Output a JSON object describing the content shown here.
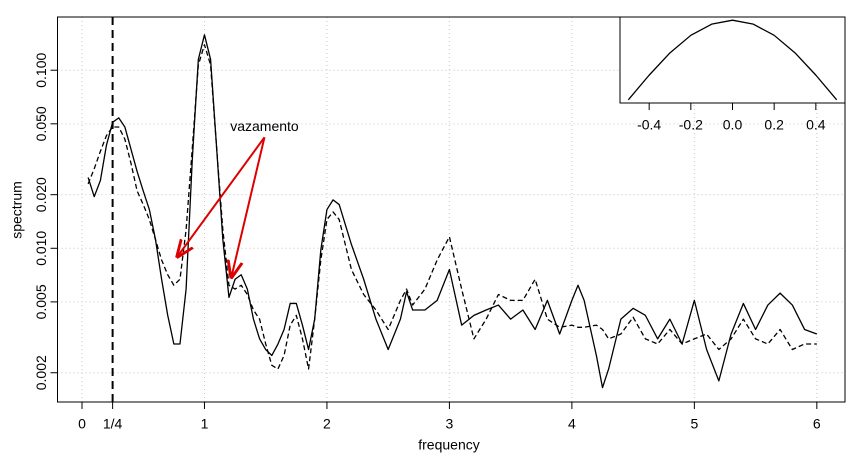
{
  "chart_data": [
    {
      "type": "line",
      "xlabel": "frequency",
      "ylabel": "spectrum",
      "log_y": true,
      "grid": true,
      "xlim": [
        -0.2,
        6.23
      ],
      "ylim": [
        0.00137,
        0.199
      ],
      "xticks": [
        0,
        1,
        2,
        3,
        4,
        5,
        6
      ],
      "yticks": [
        0.002,
        0.005,
        {
          "value": 0.01,
          "label": "0.010"
        },
        {
          "value": 0.02,
          "label": "0.020"
        },
        {
          "value": 0.05,
          "label": "0.050"
        },
        {
          "value": 0.1,
          "label": "0.100"
        }
      ],
      "vline": {
        "value": 0.25,
        "label": "1/4",
        "style": "dashed"
      },
      "x": [
        0.05,
        0.1,
        0.15,
        0.2,
        0.25,
        0.3,
        0.35,
        0.4,
        0.45,
        0.5,
        0.55,
        0.6,
        0.65,
        0.7,
        0.75,
        0.8,
        0.85,
        0.9,
        0.95,
        1.0,
        1.05,
        1.1,
        1.15,
        1.2,
        1.25,
        1.3,
        1.35,
        1.4,
        1.45,
        1.5,
        1.55,
        1.6,
        1.65,
        1.7,
        1.75,
        1.8,
        1.85,
        1.9,
        1.95,
        2.0,
        2.05,
        2.1,
        2.2,
        2.3,
        2.4,
        2.5,
        2.6,
        2.65,
        2.7,
        2.8,
        2.9,
        3.0,
        3.1,
        3.2,
        3.3,
        3.4,
        3.5,
        3.6,
        3.7,
        3.8,
        3.9,
        4.0,
        4.05,
        4.1,
        4.2,
        4.25,
        4.3,
        4.4,
        4.5,
        4.6,
        4.7,
        4.8,
        4.9,
        5.0,
        5.1,
        5.2,
        5.3,
        5.4,
        5.5,
        5.6,
        5.7,
        5.8,
        5.9,
        6.0
      ],
      "series": [
        {
          "color": "#000000",
          "dash": "solid",
          "values": [
            0.025,
            0.0195,
            0.024,
            0.038,
            0.051,
            0.054,
            0.048,
            0.036,
            0.027,
            0.021,
            0.0165,
            0.0112,
            0.0067,
            0.0042,
            0.0029,
            0.0029,
            0.0059,
            0.031,
            0.115,
            0.158,
            0.115,
            0.036,
            0.0112,
            0.0053,
            0.0067,
            0.0071,
            0.0059,
            0.004,
            0.0031,
            0.0027,
            0.0025,
            0.0029,
            0.0035,
            0.0049,
            0.0049,
            0.0037,
            0.0027,
            0.004,
            0.0098,
            0.0165,
            0.0187,
            0.0176,
            0.0105,
            0.0067,
            0.004,
            0.0027,
            0.004,
            0.0057,
            0.0045,
            0.0045,
            0.0051,
            0.0076,
            0.0037,
            0.0042,
            0.0045,
            0.0048,
            0.004,
            0.0045,
            0.0035,
            0.0051,
            0.0033,
            0.0051,
            0.0062,
            0.0051,
            0.0025,
            0.00165,
            0.0021,
            0.004,
            0.0046,
            0.0042,
            0.0031,
            0.004,
            0.0029,
            0.0051,
            0.0027,
            0.0018,
            0.0033,
            0.0049,
            0.0035,
            0.0048,
            0.0056,
            0.0048,
            0.0035,
            0.0033
          ]
        },
        {
          "color": "#000000",
          "dash": "dashed",
          "values": [
            0.023,
            0.028,
            0.035,
            0.043,
            0.048,
            0.048,
            0.041,
            0.03,
            0.021,
            0.0176,
            0.0145,
            0.0112,
            0.0086,
            0.0071,
            0.0062,
            0.0067,
            0.0127,
            0.036,
            0.107,
            0.139,
            0.107,
            0.036,
            0.0127,
            0.0062,
            0.0059,
            0.0062,
            0.0055,
            0.0045,
            0.004,
            0.0029,
            0.0022,
            0.0021,
            0.0025,
            0.0037,
            0.0042,
            0.0031,
            0.0021,
            0.004,
            0.0086,
            0.0145,
            0.016,
            0.0145,
            0.0076,
            0.0055,
            0.0045,
            0.0035,
            0.0051,
            0.0059,
            0.0048,
            0.0059,
            0.0086,
            0.0116,
            0.0059,
            0.0031,
            0.004,
            0.0055,
            0.0051,
            0.0051,
            0.0067,
            0.004,
            0.0036,
            0.0037,
            0.0036,
            0.0036,
            0.0037,
            0.0035,
            0.0031,
            0.0033,
            0.0041,
            0.0031,
            0.0029,
            0.0035,
            0.0029,
            0.0031,
            0.0033,
            0.0027,
            0.0031,
            0.004,
            0.0031,
            0.0029,
            0.0035,
            0.0027,
            0.0029,
            0.0029
          ]
        }
      ],
      "annotation": {
        "text": "vazamento",
        "color": "#dd0000",
        "from": [
          1.49,
          0.042
        ],
        "to": [
          [
            0.78,
            0.009
          ],
          [
            1.22,
            0.0069
          ]
        ]
      }
    },
    {
      "type": "line",
      "xlim": [
        -0.54,
        0.54
      ],
      "ylim": [
        -0.04,
        1.04
      ],
      "xticks": [
        -0.4,
        -0.2,
        {
          "value": 0,
          "label": "0.0"
        },
        0.2,
        0.4
      ],
      "x": [
        -0.5,
        -0.4,
        -0.3,
        -0.2,
        -0.1,
        0,
        0.1,
        0.2,
        0.3,
        0.4,
        0.5
      ],
      "series": [
        {
          "color": "#000000",
          "dash": "solid",
          "values": [
            0,
            0.31,
            0.59,
            0.81,
            0.95,
            1,
            0.95,
            0.81,
            0.59,
            0.31,
            0
          ]
        }
      ]
    }
  ]
}
